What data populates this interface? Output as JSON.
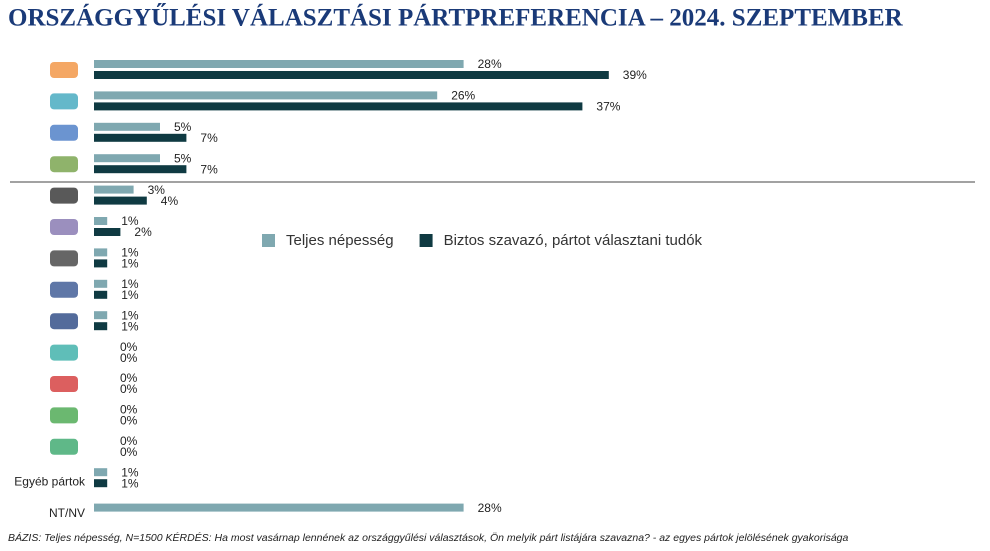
{
  "chart_data": {
    "type": "grouped-hbar",
    "title": "ORSZÁGGYŰLÉSI VÁLASZTÁSI PÁRTPREFERENCIA – 2024. SZEPTEMBER",
    "footnote": "BÁZIS: Teljes népesség, N=1500  KÉRDÉS:  Ha most vasárnap lennének az országgyűlési választások, Ön melyik párt listájára szavazna? - az egyes pártok jelölésének gyakorisága",
    "categories": [
      null,
      null,
      null,
      null,
      null,
      null,
      null,
      null,
      null,
      null,
      null,
      null,
      null,
      "Egyéb pártok",
      "NT/NV"
    ],
    "xlim": [
      0,
      40
    ],
    "series": [
      {
        "name": "Teljes népesség",
        "color": "#7fa8b0",
        "values": [
          28,
          26,
          5,
          5,
          3,
          1,
          1,
          1,
          1,
          0,
          0,
          0,
          0,
          1,
          28
        ],
        "value_labels": [
          "28%",
          "26%",
          "5%",
          "5%",
          "3%",
          "1%",
          "1%",
          "1%",
          "1%",
          "0%",
          "0%",
          "0%",
          "0%",
          "1%",
          "28%"
        ]
      },
      {
        "name": "Biztos szavazó, pártot választani tudók",
        "color": "#0f3a42",
        "values": [
          39,
          37,
          7,
          7,
          4,
          2,
          1,
          1,
          1,
          0,
          0,
          0,
          0,
          1,
          null
        ],
        "value_labels": [
          "39%",
          "37%",
          "7%",
          "7%",
          "4%",
          "2%",
          "1%",
          "1%",
          "1%",
          "0%",
          "0%",
          "0%",
          "0%",
          "1%",
          null
        ]
      }
    ]
  }
}
